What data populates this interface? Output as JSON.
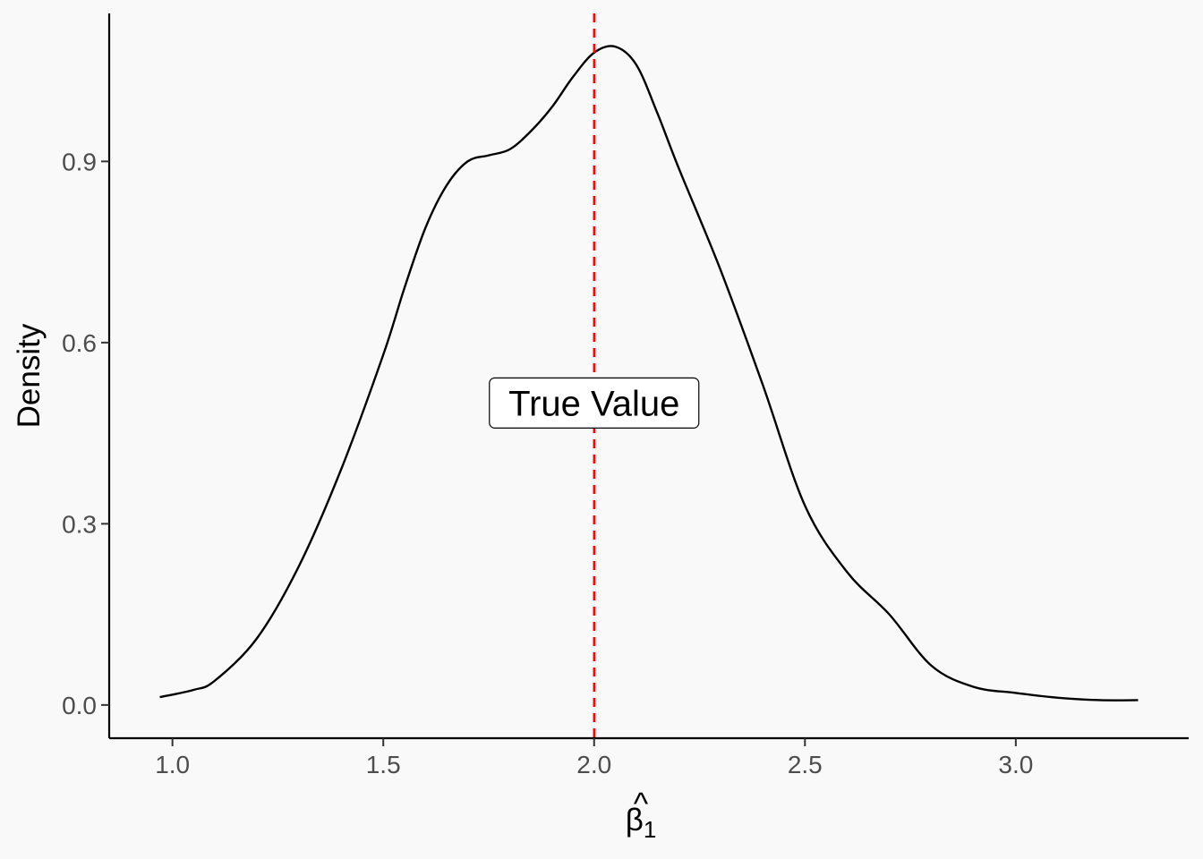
{
  "chart_data": {
    "type": "line",
    "subtype": "density",
    "title": "",
    "xlabel": {
      "symbol": "β",
      "hat": "^",
      "subscript": "1"
    },
    "ylabel": "Density",
    "xlim": [
      0.85,
      3.41
    ],
    "ylim": [
      -0.055,
      1.145
    ],
    "x_ticks": [
      1.0,
      1.5,
      2.0,
      2.5,
      3.0
    ],
    "x_tick_labels": [
      "1.0",
      "1.5",
      "2.0",
      "2.5",
      "3.0"
    ],
    "y_ticks": [
      0.0,
      0.3,
      0.6,
      0.9
    ],
    "y_tick_labels": [
      "0.0",
      "0.3",
      "0.6",
      "0.9"
    ],
    "grid": false,
    "legend": "none",
    "series": [
      {
        "color": "#000000",
        "x": [
          0.97,
          1.05,
          1.1,
          1.2,
          1.3,
          1.4,
          1.5,
          1.55,
          1.6,
          1.65,
          1.7,
          1.75,
          1.8,
          1.85,
          1.9,
          1.95,
          2.0,
          2.05,
          2.1,
          2.15,
          2.2,
          2.3,
          2.4,
          2.5,
          2.6,
          2.7,
          2.8,
          2.9,
          3.0,
          3.1,
          3.2,
          3.29
        ],
        "y": [
          0.013,
          0.025,
          0.04,
          0.11,
          0.23,
          0.39,
          0.58,
          0.69,
          0.79,
          0.86,
          0.9,
          0.91,
          0.92,
          0.95,
          0.99,
          1.04,
          1.08,
          1.09,
          1.06,
          0.98,
          0.89,
          0.72,
          0.53,
          0.33,
          0.22,
          0.15,
          0.065,
          0.03,
          0.02,
          0.012,
          0.008,
          0.008
        ]
      }
    ],
    "reference_line": {
      "x": 2.0,
      "color": "#ff0000",
      "style": "dashed"
    },
    "annotation": {
      "text": "True Value",
      "x": 2.0,
      "y": 0.5
    }
  }
}
